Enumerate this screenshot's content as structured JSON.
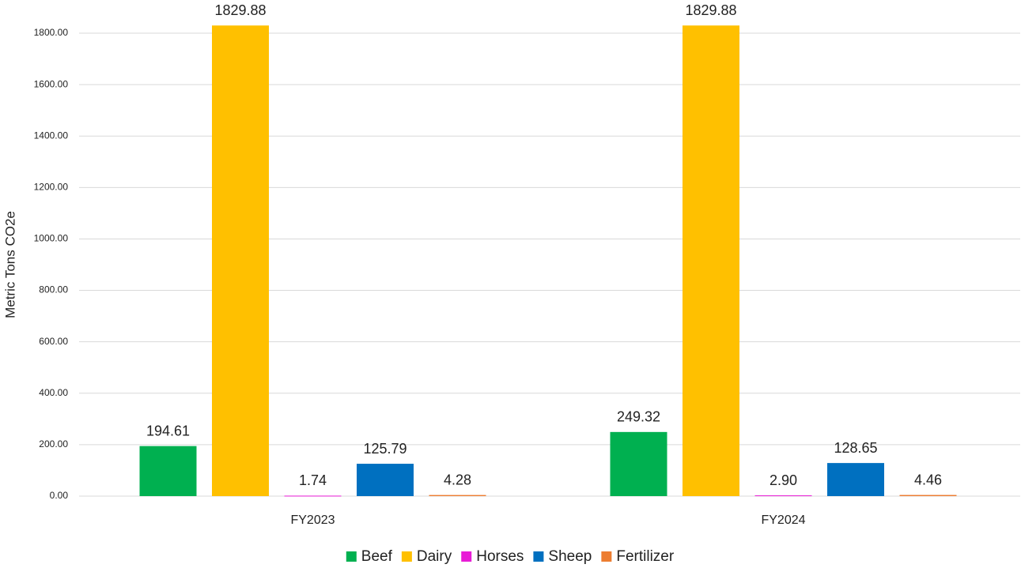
{
  "chart_data": {
    "type": "bar",
    "y_label": "Metric Tons CO2e",
    "categories": [
      "FY2023",
      "FY2024"
    ],
    "series": [
      {
        "name": "Beef",
        "color": "#00b050",
        "values": [
          194.61,
          249.32
        ],
        "value_labels": [
          "194.61",
          "249.32"
        ]
      },
      {
        "name": "Dairy",
        "color": "#ffc000",
        "values": [
          1829.88,
          1829.88
        ],
        "value_labels": [
          "1829.88",
          "1829.88"
        ]
      },
      {
        "name": "Horses",
        "color": "#e81cd6",
        "values": [
          1.74,
          2.9
        ],
        "value_labels": [
          "1.74",
          "2.90"
        ]
      },
      {
        "name": "Sheep",
        "color": "#0070c0",
        "values": [
          125.79,
          128.65
        ],
        "value_labels": [
          "125.79",
          "128.65"
        ]
      },
      {
        "name": "Fertilizer",
        "color": "#ed7d31",
        "values": [
          4.28,
          4.46
        ],
        "value_labels": [
          "4.28",
          "4.46"
        ]
      }
    ],
    "ylim": [
      0,
      1800
    ],
    "yticks": [
      {
        "value": 0,
        "label": "0.00"
      },
      {
        "value": 200,
        "label": "200.00"
      },
      {
        "value": 400,
        "label": "400.00"
      },
      {
        "value": 600,
        "label": "600.00"
      },
      {
        "value": 800,
        "label": "800.00"
      },
      {
        "value": 1000,
        "label": "1000.00"
      },
      {
        "value": 1200,
        "label": "1200.00"
      },
      {
        "value": 1400,
        "label": "1400.00"
      },
      {
        "value": 1600,
        "label": "1600.00"
      },
      {
        "value": 1800,
        "label": "1800.00"
      }
    ],
    "grid": true,
    "legend": "bottom"
  }
}
